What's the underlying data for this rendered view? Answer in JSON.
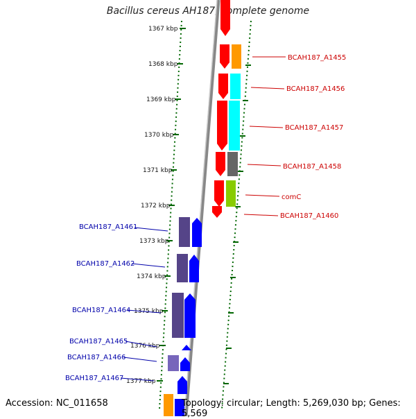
{
  "title": "Bacillus cereus AH187, complete genome",
  "footer": {
    "accession": "Accession: NC_011658",
    "summary": "Topology: circular; Length: 5,269,030 bp; Genes: 5,569"
  },
  "ticks": [
    "1367 kbp",
    "1368 kbp",
    "1369 kbp",
    "1370 kbp",
    "1371 kbp",
    "1372 kbp",
    "1373 kbp",
    "1374 kbp",
    "1375 kbp",
    "1376 kbp",
    "1377 kbp"
  ],
  "right_genes": [
    "BCAH187_A1455",
    "BCAH187_A1456",
    "BCAH187_A1457",
    "BCAH187_A1458",
    "comC",
    "BCAH187_A1460"
  ],
  "left_genes": [
    "BCAH187_A1461",
    "BCAH187_A1462",
    "BCAH187_A1464",
    "BCAH187_A1465",
    "BCAH187_A1466",
    "BCAH187_A1467"
  ],
  "colors": {
    "forward_cds": "#ff0000",
    "reverse_cds": "#0000ff",
    "cog_orange": "#ff9900",
    "cog_cyan": "#00ffff",
    "cog_gray": "#666666",
    "cog_green": "#88cc00",
    "cog_purple": "#554488",
    "backbone": "#888888",
    "dotted_ring": "#006600"
  }
}
